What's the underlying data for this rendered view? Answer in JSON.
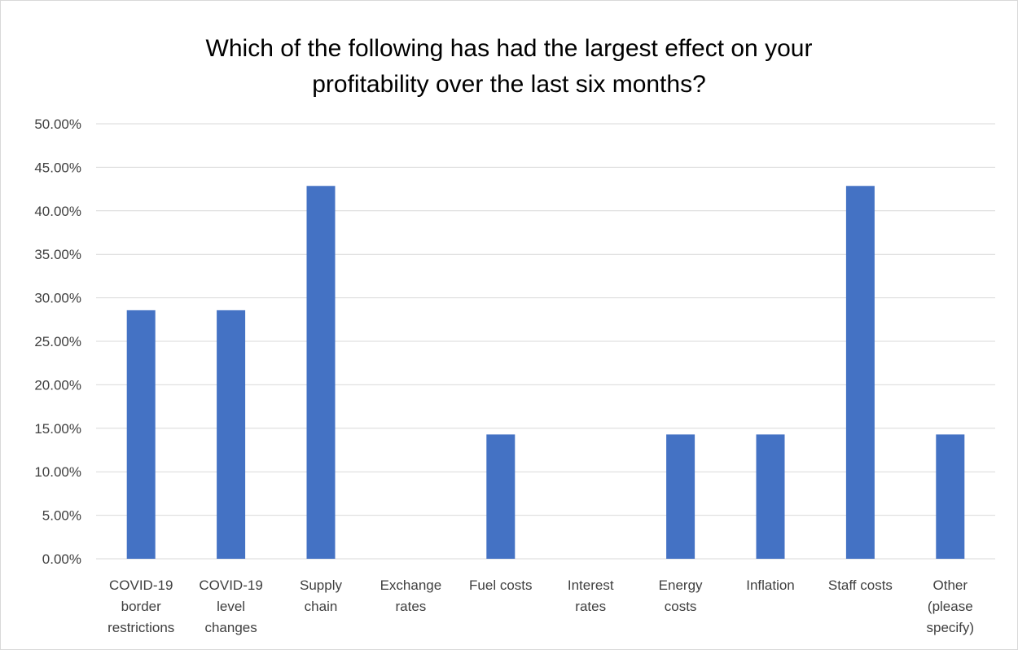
{
  "chart_data": {
    "type": "bar",
    "title_lines": [
      "Which of the following has had the largest effect on your",
      "profitability over the last six months?"
    ],
    "categories": [
      [
        "COVID-19",
        "border",
        "restrictions"
      ],
      [
        "COVID-19",
        "level",
        "changes"
      ],
      [
        "Supply",
        "chain"
      ],
      [
        "Exchange",
        "rates"
      ],
      [
        "Fuel costs"
      ],
      [
        "Interest",
        "rates"
      ],
      [
        "Energy",
        "costs"
      ],
      [
        "Inflation"
      ],
      [
        "Staff costs"
      ],
      [
        "Other",
        "(please",
        "specify)"
      ]
    ],
    "values": [
      28.57,
      28.57,
      42.86,
      0,
      14.29,
      0,
      14.29,
      14.29,
      42.86,
      14.29
    ],
    "ylim": [
      0,
      50
    ],
    "yticks": [
      "0.00%",
      "5.00%",
      "10.00%",
      "15.00%",
      "20.00%",
      "25.00%",
      "30.00%",
      "35.00%",
      "40.00%",
      "45.00%",
      "50.00%"
    ],
    "grid": true,
    "legend": "none",
    "bar_color": "#4472c4",
    "grid_color": "#d9d9d9"
  }
}
